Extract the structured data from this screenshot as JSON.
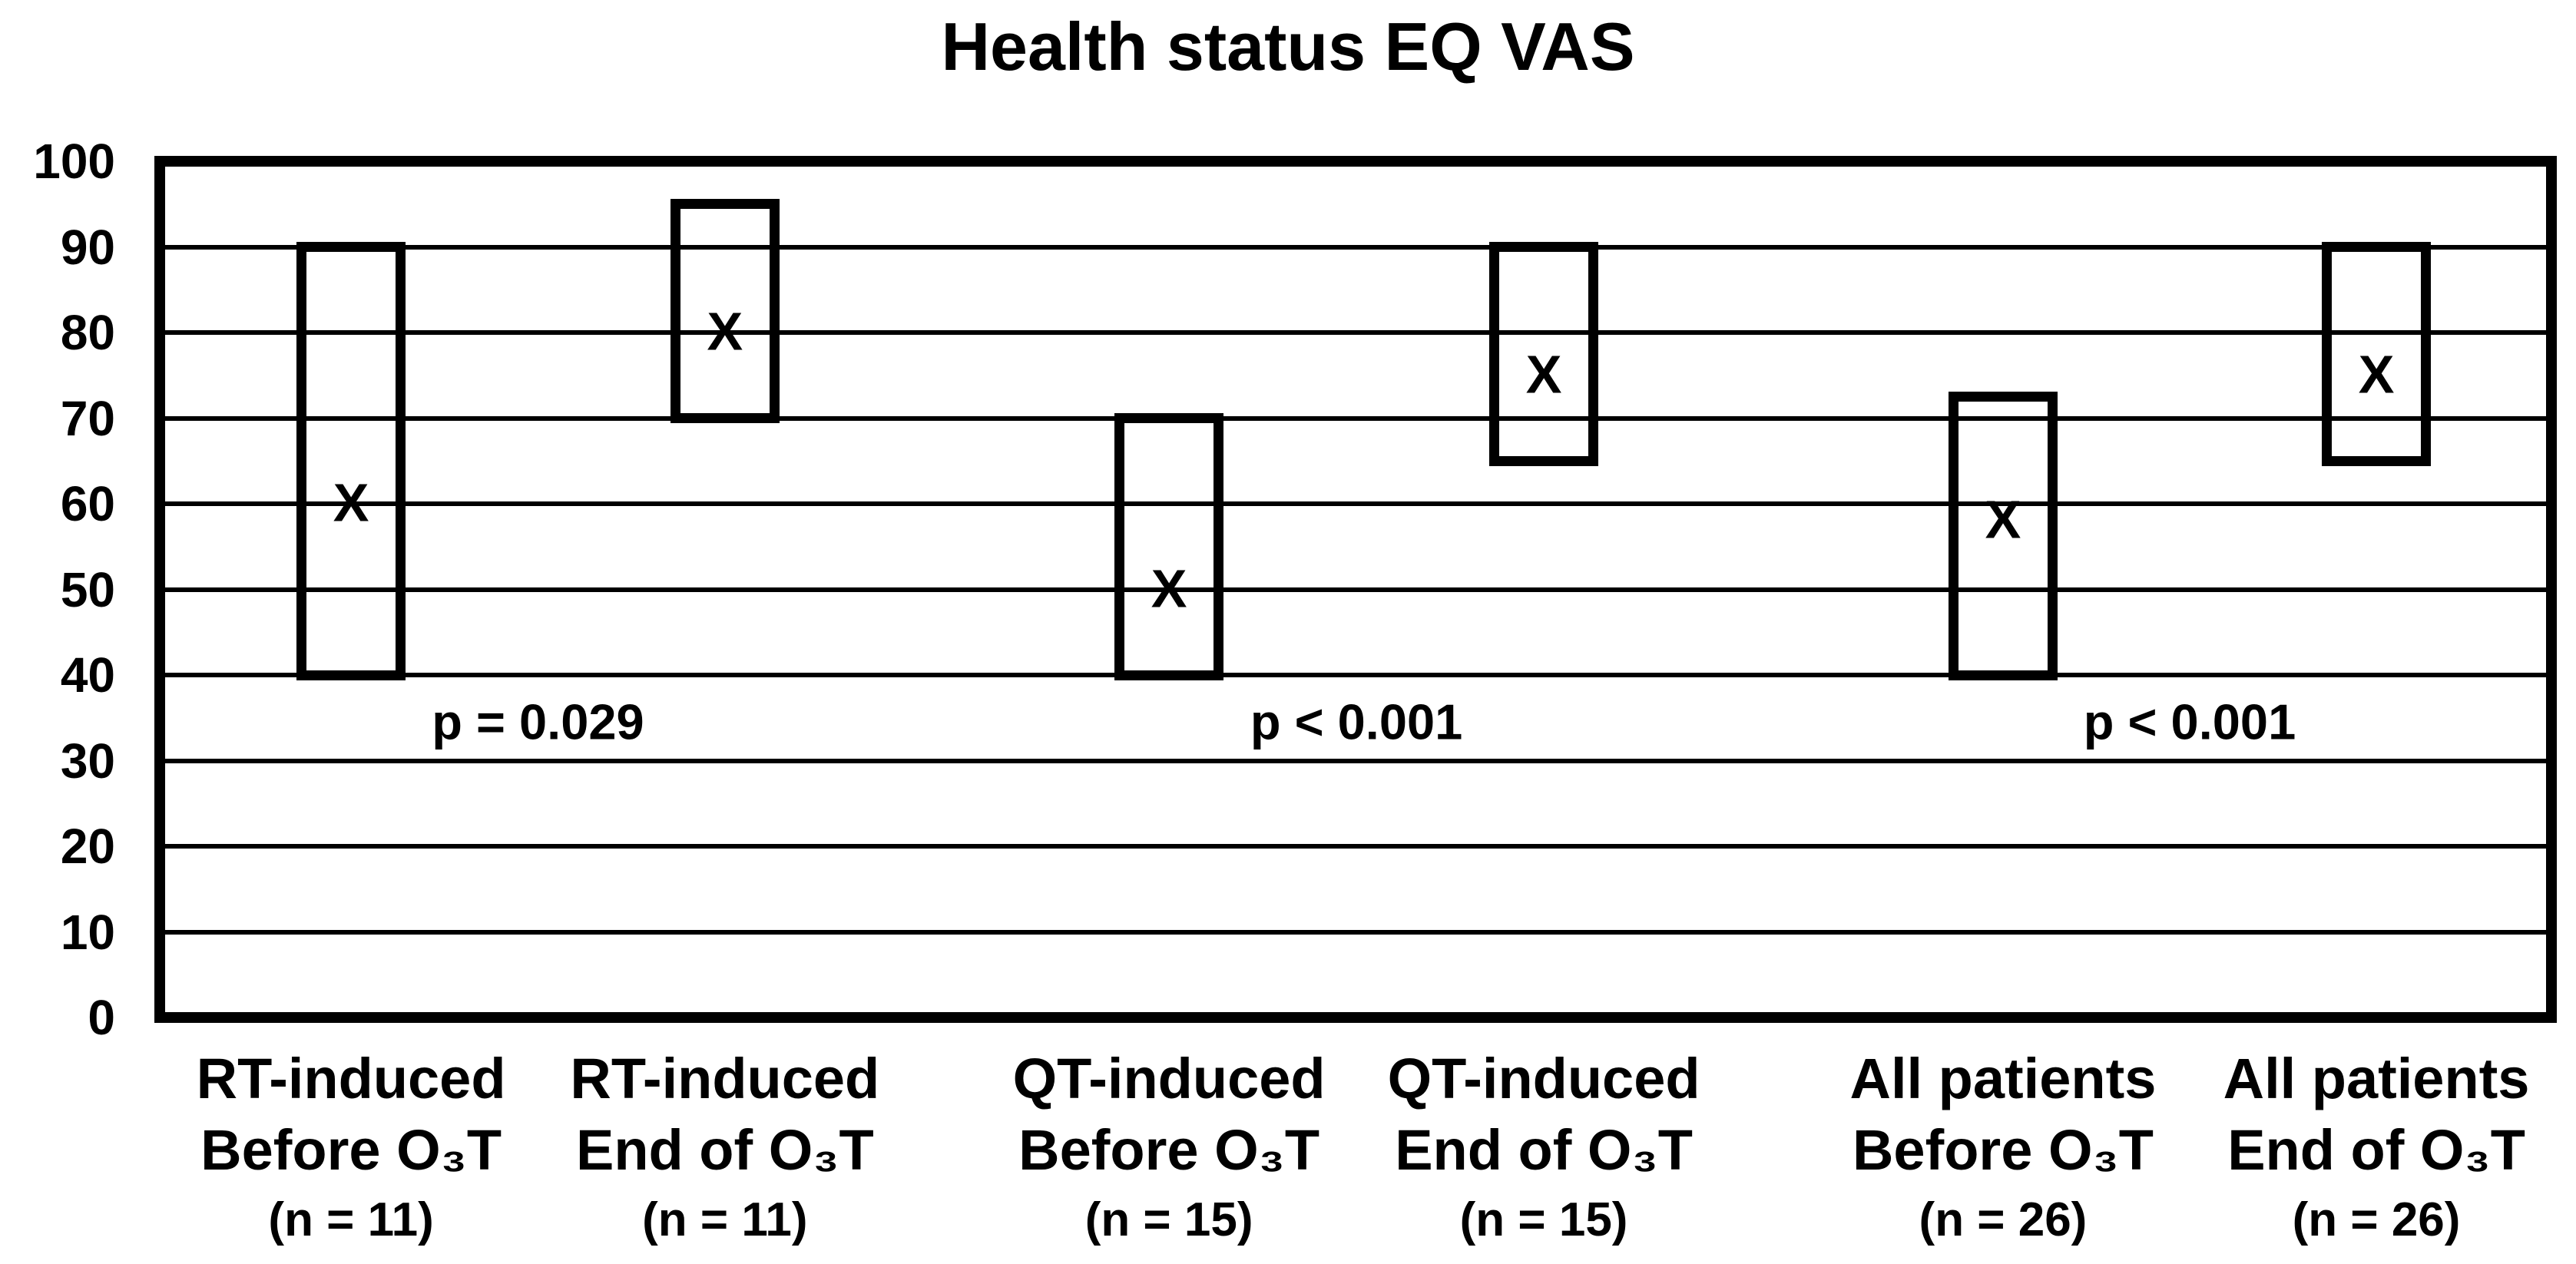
{
  "title": "Health status EQ VAS",
  "colors": {
    "foreground": "#000000",
    "background": "#ffffff"
  },
  "chart_data": {
    "type": "bar",
    "subtype": "floating-range-box-with-mean-marker",
    "title": "Health status EQ VAS",
    "xlabel": "",
    "ylabel": "",
    "ylim": [
      0,
      100
    ],
    "yticks": [
      0,
      10,
      20,
      30,
      40,
      50,
      60,
      70,
      80,
      90,
      100
    ],
    "grid": true,
    "marker_glyph": "X",
    "categories": [
      {
        "line1": "RT-induced",
        "line2": "Before O₃T",
        "line3": "(n = 11)",
        "low": 40,
        "high": 90,
        "mean": 60
      },
      {
        "line1": "RT-induced",
        "line2": "End of O₃T",
        "line3": "(n = 11)",
        "low": 70,
        "high": 95,
        "mean": 80
      },
      {
        "line1": "QT-induced",
        "line2": "Before O₃T",
        "line3": "(n = 15)",
        "low": 40,
        "high": 70,
        "mean": 50
      },
      {
        "line1": "QT-induced",
        "line2": "End of O₃T",
        "line3": "(n = 15)",
        "low": 65,
        "high": 90,
        "mean": 75
      },
      {
        "line1": "All patients",
        "line2": "Before O₃T",
        "line3": "(n = 26)",
        "low": 40,
        "high": 72.5,
        "mean": 58
      },
      {
        "line1": "All patients",
        "line2": "End of O₃T",
        "line3": "(n = 26)",
        "low": 65,
        "high": 90,
        "mean": 75
      }
    ],
    "centers_frac": [
      0.08,
      0.2363,
      0.422,
      0.5787,
      0.7707,
      0.9268
    ],
    "annotations": [
      {
        "text": "p = 0.029",
        "between": [
          0,
          1
        ],
        "y_value": 34.5
      },
      {
        "text": "p < 0.001",
        "between": [
          2,
          3
        ],
        "y_value": 34.5
      },
      {
        "text": "p < 0.001",
        "between": [
          4,
          5
        ],
        "y_value": 34.5
      }
    ]
  }
}
